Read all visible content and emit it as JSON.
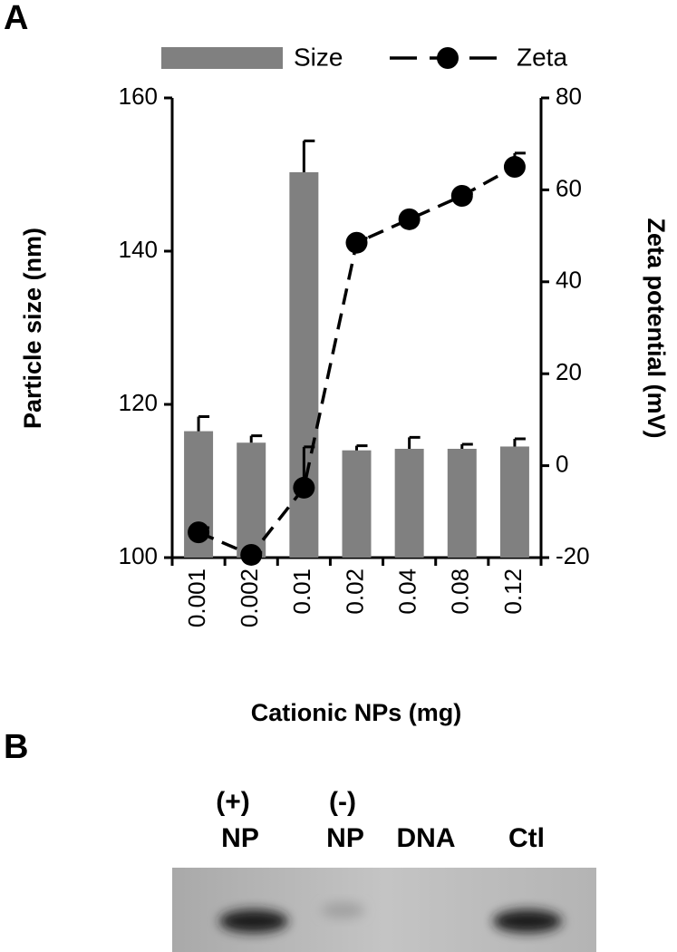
{
  "panel_labels": [
    "A",
    "B"
  ],
  "chart_data": {
    "type": "bar-line",
    "xlabel": "Cationic NPs (mg)",
    "ylabel": "Particle size (nm)",
    "y2label": "Zeta potential (mV)",
    "categories": [
      "0.001",
      "0.002",
      "0.01",
      "0.02",
      "0.04",
      "0.08",
      "0.12"
    ],
    "series": [
      {
        "name": "Size",
        "kind": "bar",
        "color": "#808080",
        "values": [
          116.5,
          115.0,
          150.3,
          114.0,
          114.2,
          114.2,
          114.5
        ],
        "errors": [
          1.9,
          0.9,
          4.1,
          0.6,
          1.5,
          0.6,
          1.0
        ]
      },
      {
        "name": "Zeta",
        "kind": "line",
        "axis": "y2",
        "color": "#000000",
        "values": [
          -14.5,
          -19.4,
          -4.8,
          48.5,
          53.6,
          58.7,
          65.0
        ],
        "errors": [
          1.0,
          0.5,
          8.9,
          1.0,
          1.0,
          0.5,
          3.0
        ]
      }
    ],
    "ylim": [
      100,
      160
    ],
    "yticks": [
      100,
      120,
      140,
      160
    ],
    "y2lim": [
      -20,
      80
    ],
    "y2ticks": [
      -20,
      0,
      20,
      40,
      60,
      80
    ],
    "legend": "top"
  },
  "gel": {
    "lanes": [
      [
        "(+)",
        "NP"
      ],
      [
        "(-)",
        "NP"
      ],
      [
        "DNA"
      ],
      [
        "Ctl"
      ]
    ]
  }
}
